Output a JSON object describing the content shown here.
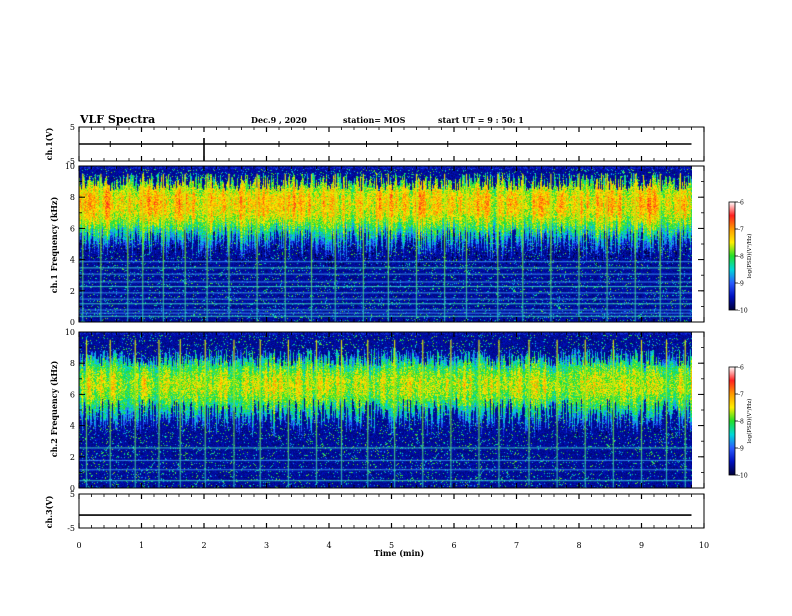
{
  "header": {
    "title": "VLF Spectra",
    "date": "Dec.9 , 2020",
    "station": "station= MOS",
    "start": "start UT = 9 : 50: 1"
  },
  "colorbar": {
    "label": "log(PSD)(V²/Hz)",
    "ticks": [
      "-6",
      "-7",
      "-8",
      "-9",
      "-10"
    ],
    "stops": [
      "#ffffff",
      "#ff2020",
      "#ff9a00",
      "#ffee00",
      "#22e02a",
      "#00d8d8",
      "#2a5cff",
      "#0010c0",
      "#00003a"
    ]
  },
  "chart_data": [
    {
      "type": "line",
      "panel": "ch1-voltage",
      "ylabel": "ch.1(V)",
      "xlim": [
        0,
        10
      ],
      "ylim": [
        -5,
        5
      ],
      "yticks": [
        "5",
        "-5"
      ],
      "trace_level_V": 0,
      "trace_end_min": 9.8,
      "spike_times_min": [
        0.5,
        1.0,
        1.5,
        2.0,
        2.35,
        3.2,
        4.0,
        4.6,
        5.1,
        5.9,
        7.0,
        7.8,
        8.6,
        9.4
      ],
      "big_spike_times_min": [
        2.0
      ]
    },
    {
      "type": "heatmap",
      "panel": "ch1-spectrogram",
      "ylabel": "ch.1 Frequency (kHz)",
      "xlim": [
        0,
        10
      ],
      "ylim": [
        0,
        10
      ],
      "yticks": [
        "0",
        "2",
        "4",
        "6",
        "8",
        "10"
      ],
      "data_end_min": 9.8,
      "color_range_logPSD": [
        -10,
        -6
      ],
      "band_center_khz": 7.6,
      "band_lower_edge_khz": 4.2,
      "band_upper_edge_khz": 9.6,
      "peak_logPSD": -6.6,
      "background_logPSD": -9.8,
      "noise_lines_khz": [
        0.4,
        0.6,
        0.8,
        1.2,
        1.5,
        1.9,
        2.3,
        2.6,
        3.1,
        3.5,
        3.9
      ],
      "sferic_times_min": [
        0.06,
        0.35,
        0.78,
        1.02,
        1.35,
        1.7,
        2.05,
        2.4,
        2.85,
        3.3,
        3.72,
        4.1,
        4.55,
        4.95,
        5.4,
        5.85,
        6.2,
        6.7,
        7.1,
        7.55,
        8.0,
        8.45,
        8.9,
        9.3,
        9.62
      ]
    },
    {
      "type": "heatmap",
      "panel": "ch2-spectrogram",
      "ylabel": "ch.2 Frequency (kHz)",
      "xlim": [
        0,
        10
      ],
      "ylim": [
        0,
        10
      ],
      "yticks": [
        "0",
        "2",
        "4",
        "6",
        "8",
        "10"
      ],
      "data_end_min": 9.8,
      "color_range_logPSD": [
        -10,
        -6
      ],
      "band_center_khz": 6.6,
      "band_lower_edge_khz": 4.0,
      "band_upper_edge_khz": 9.0,
      "peak_logPSD": -7.0,
      "background_logPSD": -9.8,
      "noise_lines_khz": [
        0.5,
        1.2,
        1.8,
        2.6
      ],
      "sferic_times_min": [
        0.12,
        0.5,
        0.9,
        1.28,
        1.62,
        2.02,
        2.48,
        2.9,
        3.35,
        3.8,
        4.2,
        4.62,
        5.05,
        5.5,
        5.95,
        6.4,
        6.72,
        7.2,
        7.65,
        8.1,
        8.55,
        9.0,
        9.4,
        9.7
      ]
    },
    {
      "type": "line",
      "panel": "ch3-voltage",
      "ylabel": "ch.3(V)",
      "xlim": [
        0,
        10
      ],
      "ylim": [
        -5,
        5
      ],
      "yticks": [
        "5",
        "-5"
      ],
      "trace_level_V": -1.2,
      "trace_end_min": 9.8,
      "xlabel": "Time (min)",
      "xticks": [
        "0",
        "1",
        "2",
        "3",
        "4",
        "5",
        "6",
        "7",
        "8",
        "9",
        "10"
      ]
    }
  ]
}
